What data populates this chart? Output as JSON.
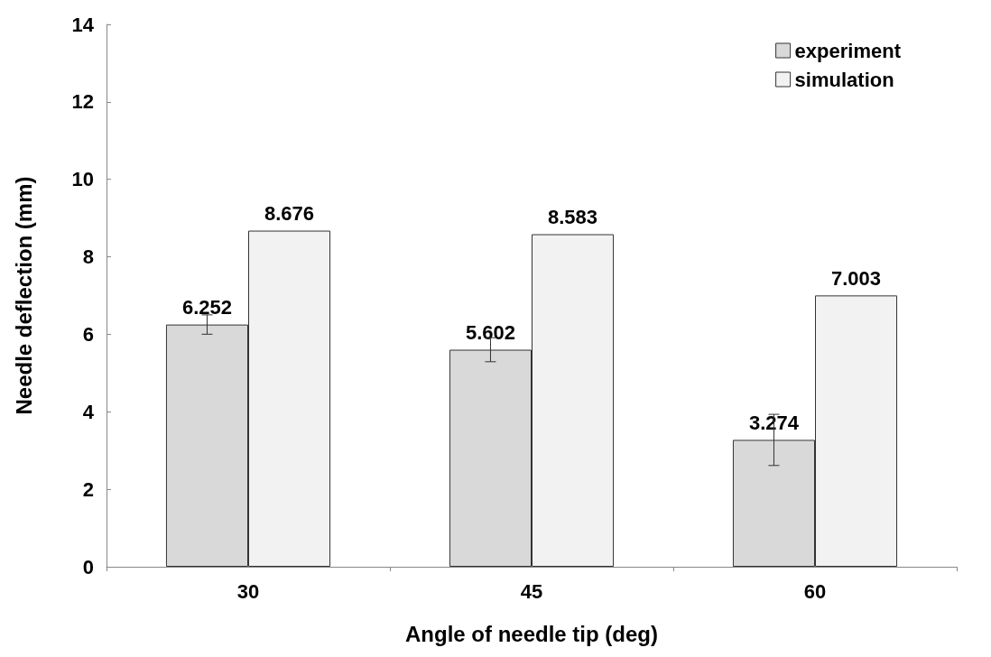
{
  "chart_data": {
    "type": "bar",
    "xlabel": "Angle of needle tip (deg)",
    "ylabel": "Needle deflection (mm)",
    "categories": [
      "30",
      "45",
      "60"
    ],
    "series": [
      {
        "name": "experiment",
        "color": "#d9d9d9",
        "values": [
          6.252,
          5.602,
          3.274
        ],
        "errors": [
          0.25,
          0.31,
          0.66
        ]
      },
      {
        "name": "simulation",
        "color": "#f2f2f2",
        "values": [
          8.676,
          8.583,
          7.003
        ]
      }
    ],
    "ylim": [
      0,
      14
    ],
    "yticks": [
      0,
      2,
      4,
      6,
      8,
      10,
      12,
      14
    ],
    "grid": false,
    "legend": "top right",
    "data_labels": true
  }
}
